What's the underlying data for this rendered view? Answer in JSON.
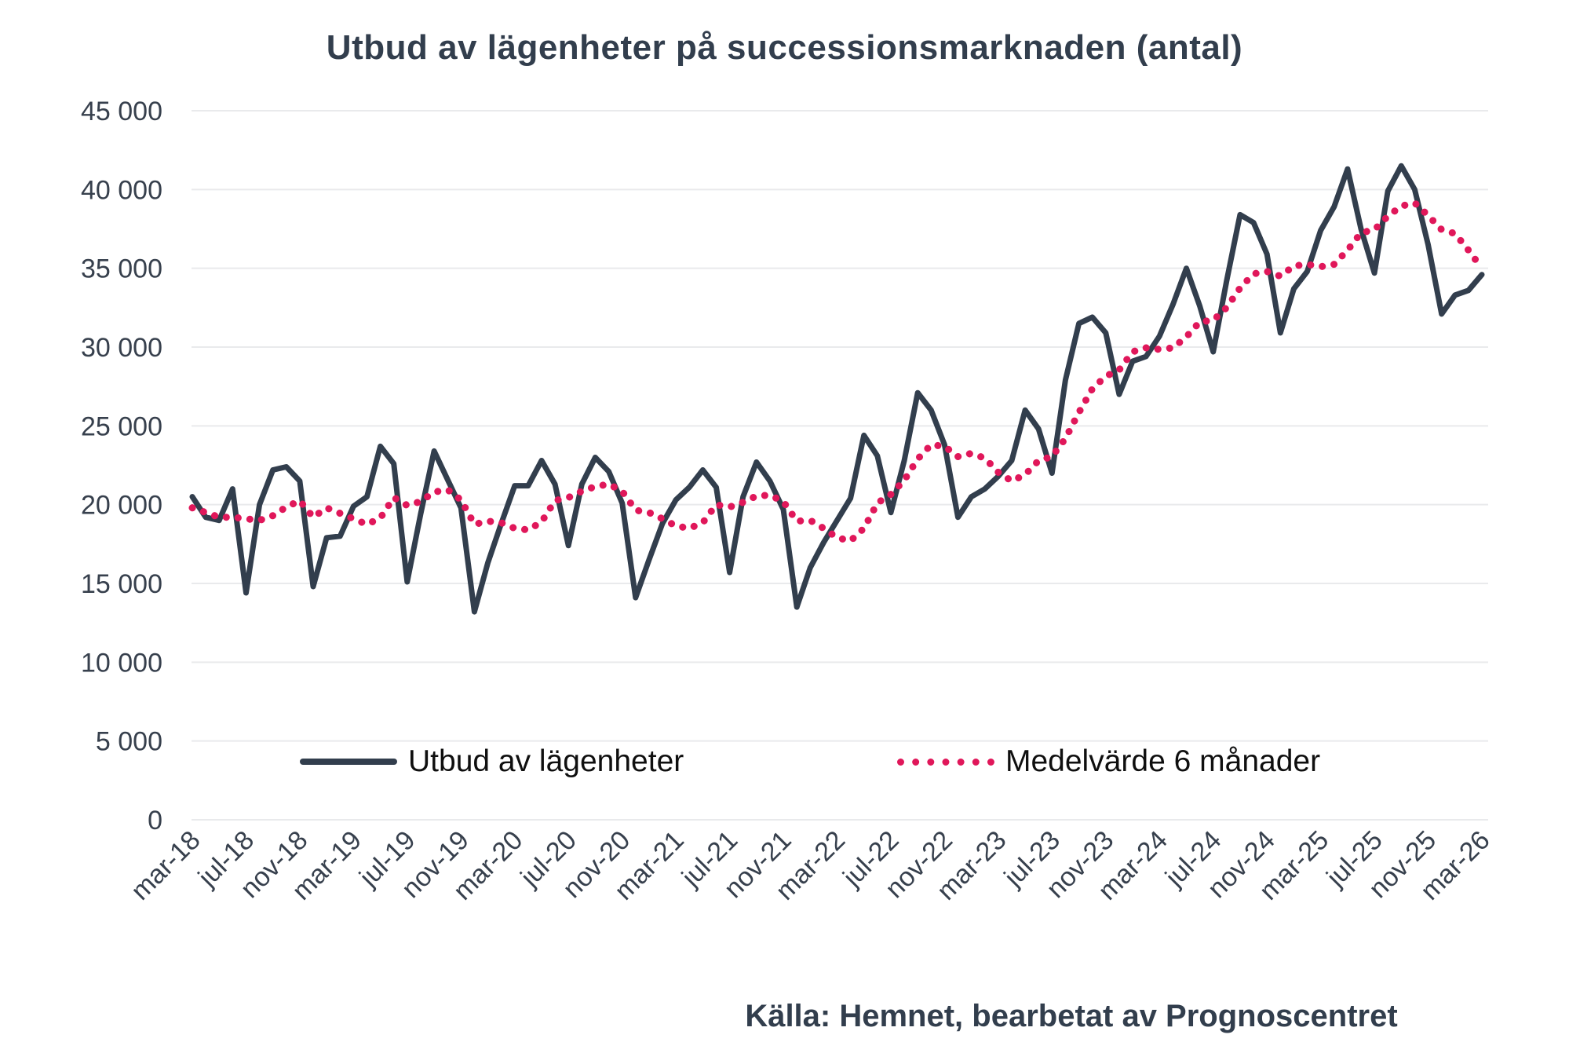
{
  "title": "Utbud av lägenheter på successionsmarknaden (antal)",
  "source": "Källa: Hemnet, bearbetat av Prognoscentret",
  "legend": {
    "supply_label": "Utbud av lägenheter",
    "avg_label": "Medelvärde 6 månader"
  },
  "colors": {
    "supply_line": "#323e4d",
    "average_line": "#e0175a",
    "grid_line": "#e9eaec",
    "axis_text": "#37404d",
    "title_text": "#323e4d",
    "legend_text": "#0f0f0f"
  },
  "chart_data": {
    "type": "line",
    "title": "Utbud av lägenheter på successionsmarknaden (antal)",
    "xlabel": "",
    "ylabel": "",
    "ylim": [
      0,
      45000
    ],
    "ytick_step": 5000,
    "y_tick_labels": [
      "0",
      "5 000",
      "10 000",
      "15 000",
      "20 000",
      "25 000",
      "30 000",
      "35 000",
      "40 000",
      "45 000"
    ],
    "x_tick_every": 4,
    "x_tick_labels": [
      "mar-18",
      "jul-18",
      "nov-18",
      "mar-19",
      "jul-19",
      "nov-19",
      "mar-20",
      "jul-20",
      "nov-20",
      "mar-21",
      "jul-21",
      "nov-21",
      "mar-22",
      "jul-22",
      "nov-22",
      "mar-23",
      "jul-23",
      "nov-23",
      "mar-24",
      "jul-24",
      "nov-24",
      "mar-25",
      "jul-25",
      "nov-25",
      "mar-26"
    ],
    "grid": "horizontal",
    "legend_position": "bottom-inside",
    "series": [
      {
        "name": "Utbud av lägenheter",
        "color": "#323e4d",
        "style": "solid",
        "values": [
          20500,
          19200,
          19000,
          21000,
          14400,
          20000,
          22200,
          22400,
          21500,
          14800,
          17900,
          18000,
          19900,
          20500,
          23700,
          22600,
          15100,
          19400,
          23400,
          21600,
          19800,
          13200,
          16300,
          18800,
          21200,
          21200,
          22800,
          21300,
          17400,
          21300,
          23000,
          22100,
          20100,
          14100,
          16500,
          18800,
          20300,
          21100,
          22200,
          21100,
          15700,
          20500,
          22700,
          21500,
          19700,
          13500,
          16000,
          17600,
          19000,
          20400,
          24400,
          23100,
          19500,
          22800,
          27100,
          26000,
          23800,
          19200,
          20500,
          21000,
          21800,
          22800,
          26000,
          24800,
          22000,
          27900,
          31500,
          31900,
          30900,
          27000,
          29100,
          29400,
          30700,
          32700,
          35000,
          32600,
          29700,
          34200,
          38400,
          37900,
          35900,
          30900,
          33700,
          34800,
          37400,
          38900,
          41300,
          37500,
          34700,
          39900,
          41500,
          40000,
          36500,
          32100,
          33300,
          33600,
          34600
        ]
      },
      {
        "name": "Medelvärde 6 månader",
        "color": "#e0175a",
        "style": "dotted",
        "values": [
          19800,
          19500,
          19200,
          19200,
          19100,
          19000,
          19300,
          19850,
          20250,
          19200,
          19800,
          19450,
          19100,
          18750,
          19150,
          20450,
          19950,
          20200,
          20800,
          20950,
          20300,
          18750,
          18950,
          18850,
          18500,
          18400,
          18900,
          20250,
          20450,
          20850,
          21150,
          21300,
          20850,
          19650,
          19500,
          19100,
          18650,
          18500,
          18850,
          20000,
          19850,
          20150,
          20550,
          20600,
          20200,
          18950,
          19000,
          18500,
          17900,
          17700,
          18500,
          20100,
          20650,
          21550,
          22900,
          23800,
          23700,
          23050,
          23250,
          22950,
          22050,
          21500,
          21900,
          22800,
          23050,
          24200,
          25850,
          27350,
          28150,
          28550,
          29700,
          29950,
          29850,
          29950,
          30650,
          31600,
          31700,
          32500,
          33750,
          34650,
          34800,
          34500,
          35150,
          35250,
          35100,
          35250,
          36150,
          37250,
          37450,
          38300,
          38950,
          39150,
          38350,
          37450,
          37200,
          36150,
          35000
        ]
      }
    ]
  }
}
